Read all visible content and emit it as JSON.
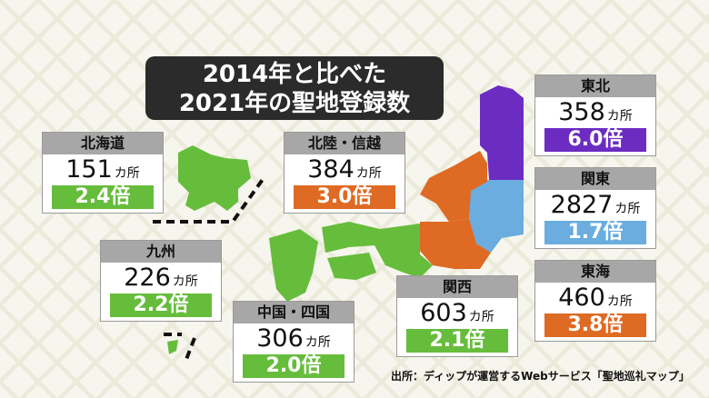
{
  "title": {
    "line1": "2014年と比べた",
    "line2": "2021年の聖地登録数"
  },
  "colors": {
    "green": "#66bd3c",
    "orange": "#de6a23",
    "purple": "#6c2cc2",
    "blue": "#6aadde"
  },
  "regions": {
    "hokkaido": {
      "name": "北海道",
      "count": "151",
      "unit": "カ所",
      "ratio": "2.4倍",
      "color": "#66bd3c"
    },
    "hokuriku": {
      "name": "北陸・信越",
      "count": "384",
      "unit": "カ所",
      "ratio": "3.0倍",
      "color": "#de6a23"
    },
    "tohoku": {
      "name": "東北",
      "count": "358",
      "unit": "カ所",
      "ratio": "6.0倍",
      "color": "#6c2cc2"
    },
    "kanto": {
      "name": "関東",
      "count": "2827",
      "unit": "カ所",
      "ratio": "1.7倍",
      "color": "#6aadde"
    },
    "kyushu": {
      "name": "九州",
      "count": "226",
      "unit": "カ所",
      "ratio": "2.2倍",
      "color": "#66bd3c"
    },
    "tokai": {
      "name": "東海",
      "count": "460",
      "unit": "カ所",
      "ratio": "3.8倍",
      "color": "#de6a23"
    },
    "kansai": {
      "name": "関西",
      "count": "603",
      "unit": "カ所",
      "ratio": "2.1倍",
      "color": "#66bd3c"
    },
    "chugoku": {
      "name": "中国・四国",
      "count": "306",
      "unit": "カ所",
      "ratio": "2.0倍",
      "color": "#66bd3c"
    }
  },
  "source": "出所：ディップが運営するWebサービス「聖地巡礼マップ」"
}
